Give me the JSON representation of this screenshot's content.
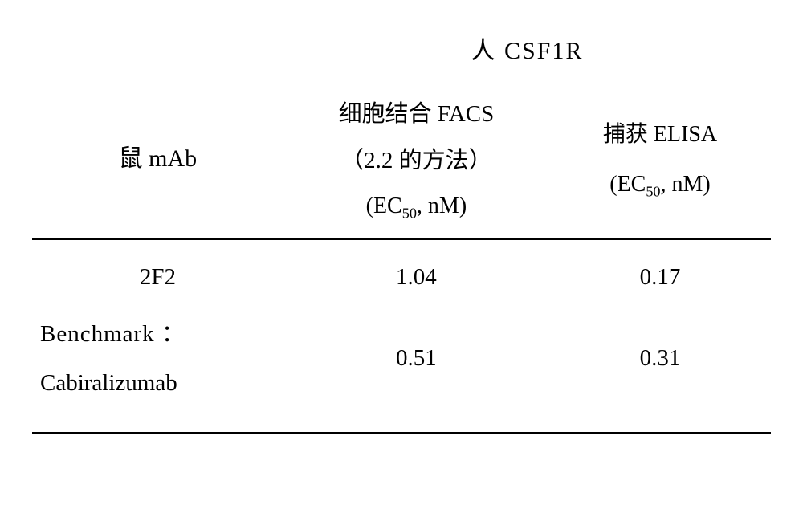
{
  "table": {
    "superheader": "人 CSF1R",
    "row_label_header": "鼠 mAb",
    "col2": {
      "line1": "细胞结合 FACS",
      "line2": "（2.2 的方法）",
      "line3_prefix": "(EC",
      "line3_sub": "50",
      "line3_suffix": ", nM)"
    },
    "col3": {
      "line1": "捕获 ELISA",
      "line2_prefix": "(EC",
      "line2_sub": "50",
      "line2_suffix": ", nM)"
    },
    "rows": [
      {
        "label": "2F2",
        "facs": "1.04",
        "elisa": "0.17"
      },
      {
        "label_line1": "Benchmark ：",
        "label_line2": "Cabiralizumab",
        "facs": "0.51",
        "elisa": "0.31"
      }
    ],
    "colors": {
      "text": "#000000",
      "background": "#ffffff",
      "rule": "#000000"
    },
    "font": {
      "body_size_pt": 22,
      "family": "serif"
    }
  }
}
